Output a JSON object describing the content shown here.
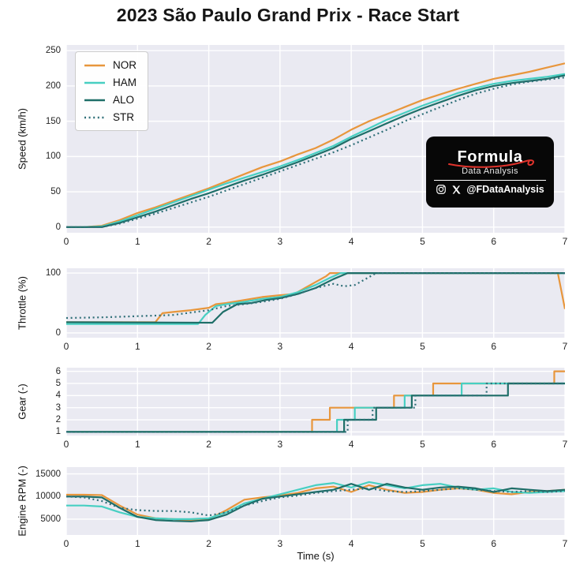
{
  "title": "2023 São Paulo Grand Prix - Race Start",
  "xlabel": "Time (s)",
  "colors": {
    "NOR": "#E8963C",
    "HAM": "#47CFC2",
    "ALO": "#1E6E68",
    "STR": "#2F6F78",
    "plot_bg": "#EAEAF2",
    "grid": "#FFFFFF",
    "swoosh_red": "#E0332C"
  },
  "logo": {
    "brand": "Formula",
    "subtitle": "Data Analysis",
    "handle": "@FDataAnalysis"
  },
  "chart_data": [
    {
      "type": "line",
      "ylabel": "Speed (km/h)",
      "xlim": [
        0,
        7
      ],
      "ylim": [
        -8,
        258
      ],
      "xticks": [
        0,
        1,
        2,
        3,
        4,
        5,
        6,
        7
      ],
      "yticks": [
        0,
        50,
        100,
        150,
        200,
        250
      ],
      "x": [
        0,
        0.25,
        0.5,
        0.75,
        1,
        1.25,
        1.5,
        1.75,
        2,
        2.25,
        2.5,
        2.75,
        3,
        3.25,
        3.5,
        3.75,
        4,
        4.25,
        4.5,
        4.75,
        5,
        5.25,
        5.5,
        5.75,
        6,
        6.25,
        6.5,
        6.75,
        7
      ],
      "series": [
        {
          "name": "NOR",
          "y": [
            0,
            0,
            2,
            10,
            20,
            28,
            37,
            46,
            55,
            65,
            75,
            85,
            93,
            103,
            112,
            124,
            138,
            150,
            160,
            170,
            180,
            188,
            196,
            203,
            210,
            215,
            220,
            226,
            232
          ]
        },
        {
          "name": "HAM",
          "y": [
            0,
            0,
            1,
            8,
            17,
            26,
            35,
            44,
            53,
            62,
            70,
            78,
            86,
            95,
            105,
            115,
            128,
            140,
            152,
            162,
            172,
            181,
            190,
            197,
            203,
            207,
            210,
            213,
            217
          ]
        },
        {
          "name": "ALO",
          "y": [
            0,
            0,
            0,
            6,
            14,
            22,
            31,
            40,
            48,
            57,
            66,
            74,
            83,
            92,
            102,
            112,
            125,
            136,
            147,
            158,
            168,
            177,
            186,
            194,
            200,
            204,
            207,
            210,
            215
          ]
        },
        {
          "name": "STR",
          "style": "dotted",
          "y": [
            0,
            0,
            0,
            5,
            12,
            19,
            27,
            35,
            43,
            52,
            61,
            70,
            79,
            88,
            97,
            106,
            116,
            127,
            138,
            150,
            160,
            170,
            180,
            189,
            196,
            202,
            206,
            209,
            212
          ]
        }
      ]
    },
    {
      "type": "line",
      "ylabel": "Throttle (%)",
      "xlim": [
        0,
        7
      ],
      "ylim": [
        -8,
        108
      ],
      "xticks": [
        0,
        1,
        2,
        3,
        4,
        5,
        6,
        7
      ],
      "yticks": [
        0,
        100
      ],
      "series": [
        {
          "name": "NOR",
          "x": [
            0,
            1.25,
            1.35,
            1.5,
            1.75,
            2.0,
            2.1,
            2.25,
            2.5,
            2.75,
            3.0,
            3.2,
            3.35,
            3.5,
            3.65,
            3.7,
            6.9,
            7.0
          ],
          "y": [
            18,
            18,
            33,
            35,
            38,
            42,
            48,
            50,
            55,
            60,
            63,
            65,
            75,
            85,
            95,
            100,
            100,
            40
          ]
        },
        {
          "name": "HAM",
          "x": [
            0,
            1.85,
            1.95,
            2.1,
            2.25,
            2.5,
            2.75,
            3.0,
            3.25,
            3.5,
            3.7,
            3.85,
            7.0
          ],
          "y": [
            15,
            15,
            30,
            45,
            48,
            52,
            57,
            60,
            68,
            80,
            92,
            100,
            100
          ]
        },
        {
          "name": "ALO",
          "x": [
            0,
            2.05,
            2.2,
            2.4,
            2.6,
            2.8,
            3.0,
            3.25,
            3.5,
            3.75,
            3.95,
            7.0
          ],
          "y": [
            18,
            17,
            35,
            48,
            50,
            55,
            58,
            65,
            75,
            90,
            100,
            100
          ]
        },
        {
          "name": "STR",
          "style": "dotted",
          "x": [
            0,
            0.5,
            1.0,
            1.5,
            2.0,
            2.25,
            2.5,
            2.75,
            3.0,
            3.25,
            3.5,
            3.75,
            3.9,
            4.05,
            4.2,
            4.35,
            7.0
          ],
          "y": [
            25,
            26,
            28,
            30,
            38,
            45,
            48,
            52,
            57,
            65,
            75,
            82,
            78,
            80,
            90,
            100,
            100
          ]
        }
      ]
    },
    {
      "type": "step",
      "ylabel": "Gear (-)",
      "xlim": [
        0,
        7
      ],
      "ylim": [
        0.7,
        6.3
      ],
      "xticks": [
        0,
        1,
        2,
        3,
        4,
        5,
        6,
        7
      ],
      "yticks": [
        1,
        2,
        3,
        4,
        5,
        6
      ],
      "series": [
        {
          "name": "NOR",
          "x": [
            0,
            3.45,
            3.7,
            4.6,
            5.15,
            6.85
          ],
          "y": [
            1,
            2,
            3,
            4,
            5,
            6
          ]
        },
        {
          "name": "HAM",
          "x": [
            0,
            3.8,
            4.05,
            4.75,
            5.55
          ],
          "y": [
            1,
            2,
            3,
            4,
            5
          ]
        },
        {
          "name": "ALO",
          "x": [
            0,
            3.9,
            4.35,
            4.85,
            6.2
          ],
          "y": [
            1,
            2,
            3,
            4,
            5
          ]
        },
        {
          "name": "STR",
          "style": "dotted",
          "x": [
            0,
            3.95,
            4.3,
            4.9,
            5.9
          ],
          "y": [
            1,
            2,
            3,
            4,
            5
          ]
        }
      ]
    },
    {
      "type": "line",
      "ylabel": "Engine RPM (-)",
      "xlim": [
        0,
        7
      ],
      "ylim": [
        1500,
        16500
      ],
      "xticks": [
        0,
        1,
        2,
        3,
        4,
        5,
        6,
        7
      ],
      "yticks": [
        5000,
        10000,
        15000
      ],
      "x": [
        0,
        0.25,
        0.5,
        0.75,
        1,
        1.25,
        1.5,
        1.75,
        2,
        2.25,
        2.5,
        2.75,
        3,
        3.25,
        3.5,
        3.75,
        4,
        4.25,
        4.5,
        4.75,
        5,
        5.25,
        5.5,
        5.75,
        6,
        6.25,
        6.5,
        6.75,
        7
      ],
      "series": [
        {
          "name": "NOR",
          "y": [
            10400,
            10400,
            10300,
            8000,
            6000,
            5200,
            5000,
            4800,
            5000,
            7000,
            9300,
            9800,
            10200,
            10800,
            11800,
            12200,
            11000,
            12500,
            11500,
            10800,
            11000,
            11500,
            11800,
            11500,
            10800,
            10500,
            11000,
            11200,
            11500
          ]
        },
        {
          "name": "HAM",
          "y": [
            8000,
            8000,
            7800,
            6500,
            5500,
            5200,
            5000,
            5000,
            5200,
            6500,
            8500,
            9500,
            10500,
            11500,
            12500,
            13000,
            12000,
            13200,
            12500,
            11800,
            12500,
            12800,
            12000,
            11500,
            11800,
            11000,
            10800,
            11000,
            11200
          ]
        },
        {
          "name": "ALO",
          "y": [
            10000,
            10000,
            9800,
            7500,
            5500,
            4800,
            4600,
            4500,
            4800,
            6000,
            8000,
            9500,
            10000,
            10500,
            11000,
            11500,
            12800,
            11500,
            12800,
            12000,
            11500,
            12000,
            12200,
            11800,
            11000,
            11800,
            11500,
            11200,
            11500
          ]
        },
        {
          "name": "STR",
          "style": "dotted",
          "y": [
            10000,
            9800,
            9000,
            7500,
            7000,
            6800,
            6800,
            6500,
            5800,
            6500,
            8000,
            9000,
            9800,
            10200,
            10800,
            11200,
            11500,
            11800,
            11200,
            11000,
            11200,
            11500,
            11800,
            11500,
            11200,
            11000,
            11200,
            11000,
            11200
          ]
        }
      ]
    }
  ]
}
